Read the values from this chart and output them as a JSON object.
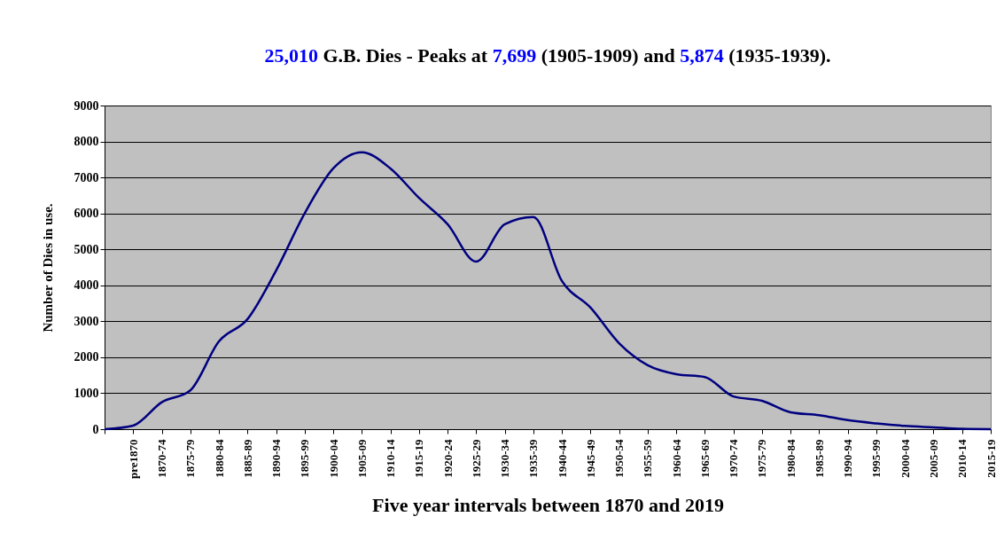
{
  "chart_data": {
    "type": "line",
    "title": "25,010 G.B. Dies - Peaks at 7,699 (1905-1909) and 5,874 (1935-1939).",
    "xlabel": "Five year intervals between 1870 and 2019",
    "ylabel": "Number of Dies in use.",
    "categories": [
      null,
      "pre1870",
      "1870-74",
      "1875-79",
      "1880-84",
      "1885-89",
      "1890-94",
      "1895-99",
      "1900-04",
      "1905-09",
      "1910-14",
      "1915-19",
      "1920-24",
      "1925-29",
      "1930-34",
      "1935-39",
      "1940-44",
      "1945-49",
      "1950-54",
      "1955-59",
      "1960-64",
      "1965-69",
      "1970-74",
      "1975-79",
      "1980-84",
      "1985-89",
      "1990-94",
      "1995-99",
      "2000-04",
      "2005-09",
      "2010-14",
      "2015-19"
    ],
    "series": [
      {
        "color": "#000080",
        "values": [
          0,
          100,
          750,
          1080,
          2440,
          3060,
          4410,
          6000,
          7250,
          7700,
          7250,
          6430,
          5700,
          4660,
          5700,
          5900,
          4120,
          3380,
          2390,
          1780,
          1530,
          1450,
          910,
          790,
          470,
          390,
          250,
          160,
          90,
          50,
          10,
          0
        ]
      }
    ],
    "ylim": [
      0,
      9000
    ],
    "yticks": [
      0,
      1000,
      2000,
      3000,
      4000,
      5000,
      6000,
      7000,
      8000,
      9000
    ],
    "grid": "y",
    "marker": "none",
    "line_style": "solid"
  }
}
